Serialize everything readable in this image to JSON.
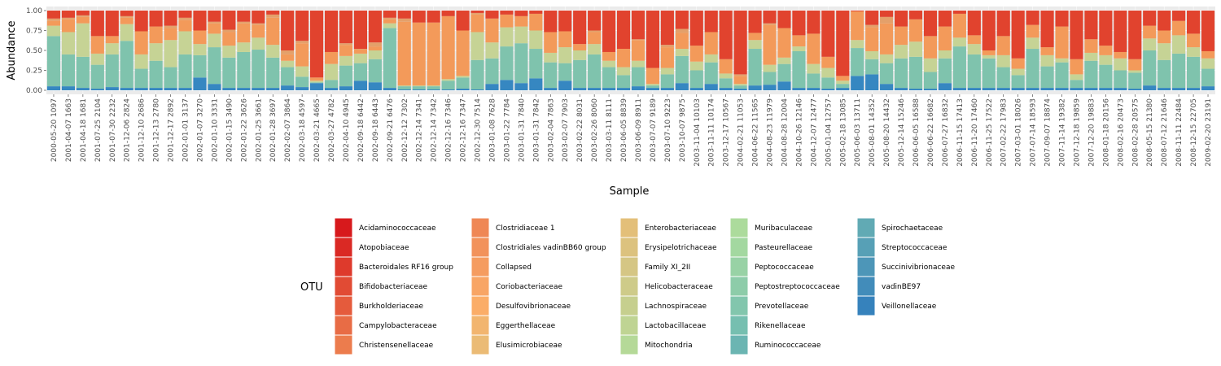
{
  "chart_data": {
    "type": "bar",
    "stacked": true,
    "xlabel": "Sample",
    "ylabel": "Abundance",
    "ylim": [
      0,
      1
    ],
    "yticks": [
      "0.00",
      "0.25",
      "0.50",
      "0.75",
      "1.00"
    ],
    "legend_title": "OTU",
    "legend_position": "bottom",
    "grid": true,
    "categories": [
      "2000-05-20 1097",
      "2001-04-07 1663",
      "2001-04-18 1681",
      "2001-07-25 2104",
      "2001-07-30 2232",
      "2001-12-06 2824",
      "2001-12-10 2686",
      "2001-12-13 2780",
      "2001-12-17 2892",
      "2002-01-01 3137",
      "2002-01-07 3270",
      "2002-01-10 3331",
      "2002-01-15 3490",
      "2002-01-22 3626",
      "2002-01-25 3661",
      "2002-01-28 3697",
      "2002-02-07 3864",
      "2002-03-18 4597",
      "2002-03-21 4665",
      "2002-03-27 4782",
      "2002-04-10 4945",
      "2002-09-18 6442",
      "2002-09-18 6443",
      "2002-09-21 6476",
      "2002-12-12 7302",
      "2002-12-14 7341",
      "2002-12-14 7342",
      "2002-12-16 7346",
      "2002-12-16 7347",
      "2002-12-30 7514",
      "2003-01-08 7628",
      "2003-01-22 7784",
      "2003-01-31 7840",
      "2003-01-31 7842",
      "2003-02-04 7863",
      "2003-02-07 7903",
      "2003-02-22 8031",
      "2003-02-26 8060",
      "2003-03-11 8111",
      "2003-06-05 8839",
      "2003-06-09 8911",
      "2003-07-07 9189",
      "2003-07-10 9223",
      "2003-10-07 9875",
      "2003-11-04 10103",
      "2003-11-11 10174",
      "2003-12-17 10567",
      "2004-02-21 11053",
      "2004-06-22 11565",
      "2004-08-23 11979",
      "2004-08-28 12004",
      "2004-10-26 12146",
      "2004-12-07 12477",
      "2005-01-04 12757",
      "2005-02-18 13085",
      "2005-06-03 13711",
      "2005-08-01 14352",
      "2005-08-20 14432",
      "2005-12-14 15246",
      "2006-06-05 16588",
      "2006-06-22 16682",
      "2006-07-27 16832",
      "2006-11-15 17413",
      "2006-11-20 17460",
      "2006-11-25 17522",
      "2007-02-22 17983",
      "2007-03-01 18026",
      "2007-07-14 18593",
      "2007-09-07 18874",
      "2007-11-14 19382",
      "2007-12-18 19859",
      "2007-12-20 19883",
      "2008-01-18 20156",
      "2008-02-16 20473",
      "2008-02-28 20575",
      "2008-05-15 21380",
      "2008-07-12 21646",
      "2008-11-11 22484",
      "2008-12-15 22705",
      "2009-02-20 23191"
    ],
    "group_order": [
      "Veillonellaceae",
      "Prevotellaceae",
      "Lachnospiraceae",
      "Collapsed",
      "Ruminococcaceae",
      "Bacteroidales RF16 group"
    ],
    "group_colors": {
      "Veillonellaceae": "#3687c1",
      "Prevotellaceae": "#7fc3ad",
      "Lachnospiraceae": "#c6d395",
      "Collapsed": "#f39a5a",
      "Ruminococcaceae": "#e4a06a",
      "Bacteroidales RF16 group": "#e1432e"
    },
    "series": [
      {
        "name": "Veillonellaceae",
        "values": [
          0.05,
          0.05,
          0.03,
          0.02,
          0.04,
          0.03,
          0.03,
          0.03,
          0.03,
          0.03,
          0.16,
          0.08,
          0.03,
          0.03,
          0.03,
          0.03,
          0.06,
          0.04,
          0.09,
          0.03,
          0.05,
          0.12,
          0.1,
          0.03,
          0.01,
          0.01,
          0.01,
          0.01,
          0.02,
          0.01,
          0.08,
          0.13,
          0.09,
          0.15,
          0.03,
          0.12,
          0.03,
          0.03,
          0.03,
          0.03,
          0.05,
          0.03,
          0.03,
          0.09,
          0.03,
          0.08,
          0.03,
          0.02,
          0.06,
          0.07,
          0.11,
          0.03,
          0.03,
          0.02,
          0.03,
          0.18,
          0.2,
          0.08,
          0.03,
          0.02,
          0.02,
          0.09,
          0.03,
          0.03,
          0.03,
          0.03,
          0.03,
          0.03,
          0.03,
          0.03,
          0.03,
          0.03,
          0.03,
          0.03,
          0.02,
          0.06,
          0.03,
          0.03,
          0.03,
          0.05
        ]
      },
      {
        "name": "Prevotellaceae",
        "values": [
          0.63,
          0.4,
          0.39,
          0.3,
          0.41,
          0.59,
          0.24,
          0.34,
          0.26,
          0.42,
          0.28,
          0.46,
          0.38,
          0.45,
          0.48,
          0.38,
          0.23,
          0.13,
          0.01,
          0.1,
          0.26,
          0.22,
          0.29,
          0.75,
          0.04,
          0.04,
          0.04,
          0.11,
          0.14,
          0.37,
          0.32,
          0.42,
          0.5,
          0.37,
          0.32,
          0.22,
          0.35,
          0.42,
          0.26,
          0.16,
          0.24,
          0.03,
          0.17,
          0.34,
          0.22,
          0.27,
          0.12,
          0.04,
          0.46,
          0.16,
          0.22,
          0.46,
          0.18,
          0.14,
          0.05,
          0.35,
          0.19,
          0.26,
          0.37,
          0.4,
          0.21,
          0.31,
          0.52,
          0.42,
          0.37,
          0.26,
          0.16,
          0.49,
          0.27,
          0.32,
          0.1,
          0.34,
          0.29,
          0.22,
          0.2,
          0.44,
          0.35,
          0.43,
          0.39,
          0.22
        ]
      },
      {
        "name": "Lachnospiraceae",
        "values": [
          0.13,
          0.28,
          0.42,
          0.14,
          0.14,
          0.21,
          0.18,
          0.22,
          0.34,
          0.29,
          0.14,
          0.17,
          0.15,
          0.12,
          0.15,
          0.16,
          0.08,
          0.13,
          0.02,
          0.2,
          0.12,
          0.12,
          0.11,
          0.06,
          0.01,
          0.01,
          0.01,
          0.02,
          0.02,
          0.35,
          0.2,
          0.24,
          0.21,
          0.23,
          0.12,
          0.2,
          0.12,
          0.13,
          0.08,
          0.1,
          0.08,
          0.02,
          0.08,
          0.09,
          0.11,
          0.1,
          0.06,
          0.02,
          0.11,
          0.09,
          0.08,
          0.06,
          0.12,
          0.12,
          0.04,
          0.1,
          0.1,
          0.11,
          0.17,
          0.19,
          0.17,
          0.1,
          0.11,
          0.13,
          0.04,
          0.15,
          0.08,
          0.14,
          0.14,
          0.05,
          0.07,
          0.1,
          0.12,
          0.15,
          0.03,
          0.15,
          0.21,
          0.23,
          0.12,
          0.13
        ]
      },
      {
        "name": "Collapsed",
        "values": [
          0.06,
          0.16,
          0.08,
          0.22,
          0.09,
          0.08,
          0.29,
          0.21,
          0.15,
          0.14,
          0.17,
          0.13,
          0.17,
          0.24,
          0.16,
          0.34,
          0.08,
          0.29,
          0.04,
          0.15,
          0.14,
          0.05,
          0.05,
          0.05,
          0.8,
          0.79,
          0.79,
          0.79,
          0.57,
          0.22,
          0.3,
          0.16,
          0.13,
          0.21,
          0.26,
          0.2,
          0.08,
          0.15,
          0.11,
          0.23,
          0.26,
          0.2,
          0.26,
          0.2,
          0.2,
          0.28,
          0.18,
          0.1,
          0.09,
          0.5,
          0.37,
          0.14,
          0.38,
          0.14,
          0.06,
          0.36,
          0.3,
          0.39,
          0.23,
          0.28,
          0.28,
          0.3,
          0.3,
          0.11,
          0.06,
          0.24,
          0.13,
          0.16,
          0.1,
          0.4,
          0.19,
          0.17,
          0.12,
          0.08,
          0.14,
          0.16,
          0.16,
          0.18,
          0.17,
          0.09
        ]
      },
      {
        "name": "Ruminococcaceae",
        "values": [
          0.03,
          0.02,
          0.02,
          0.0,
          0.0,
          0.02,
          0.0,
          0.0,
          0.03,
          0.03,
          0.0,
          0.02,
          0.03,
          0.02,
          0.02,
          0.04,
          0.05,
          0.03,
          0.0,
          0.0,
          0.02,
          0.01,
          0.05,
          0.02,
          0.04,
          0.0,
          0.0,
          0.0,
          0.0,
          0.02,
          0.0,
          0.0,
          0.0,
          0.0,
          0.0,
          0.0,
          0.0,
          0.02,
          0.0,
          0.0,
          0.01,
          0.0,
          0.03,
          0.05,
          0.0,
          0.0,
          0.0,
          0.02,
          0.0,
          0.02,
          0.0,
          0.0,
          0.0,
          0.0,
          0.0,
          0.0,
          0.03,
          0.08,
          0.0,
          0.0,
          0.0,
          0.0,
          0.0,
          0.0,
          0.0,
          0.0,
          0.0,
          0.0,
          0.0,
          0.0,
          0.0,
          0.0,
          0.0,
          0.0,
          0.0,
          0.0,
          0.0,
          0.0,
          0.0,
          0.0
        ]
      },
      {
        "name": "Bacteroidales RF16 group",
        "values": [
          0.1,
          0.09,
          0.06,
          0.32,
          0.32,
          0.07,
          0.26,
          0.2,
          0.19,
          0.09,
          0.25,
          0.14,
          0.24,
          0.14,
          0.16,
          0.05,
          0.5,
          0.38,
          0.84,
          0.52,
          0.41,
          0.48,
          0.4,
          0.09,
          0.1,
          0.15,
          0.15,
          0.07,
          0.25,
          0.03,
          0.1,
          0.05,
          0.07,
          0.04,
          0.27,
          0.26,
          0.42,
          0.25,
          0.52,
          0.48,
          0.36,
          0.72,
          0.43,
          0.23,
          0.44,
          0.27,
          0.61,
          0.8,
          0.28,
          0.16,
          0.22,
          0.31,
          0.29,
          0.58,
          0.82,
          0.01,
          0.18,
          0.08,
          0.2,
          0.11,
          0.32,
          0.2,
          0.04,
          0.31,
          0.5,
          0.32,
          0.6,
          0.18,
          0.46,
          0.2,
          0.61,
          0.36,
          0.44,
          0.52,
          0.61,
          0.19,
          0.25,
          0.13,
          0.29,
          0.51
        ]
      }
    ],
    "legend": [
      {
        "label": "Acidaminococcaceae",
        "color": "#d7191c"
      },
      {
        "label": "Atopobiaceae",
        "color": "#da2924"
      },
      {
        "label": "Bacteroidales RF16 group",
        "color": "#de3a2c"
      },
      {
        "label": "Bifidobacteriaceae",
        "color": "#e14b34"
      },
      {
        "label": "Burkholderiaceae",
        "color": "#e55b3c"
      },
      {
        "label": "Campylobacteraceae",
        "color": "#e86c45"
      },
      {
        "label": "Christensenellaceae",
        "color": "#ec7c4d"
      },
      {
        "label": "Clostridiaceae 1",
        "color": "#ef8755"
      },
      {
        "label": "Clostridiales vadinBB60 group",
        "color": "#f2925b"
      },
      {
        "label": "Collapsed",
        "color": "#f59c60"
      },
      {
        "label": "Coriobacteriaceae",
        "color": "#f8a565"
      },
      {
        "label": "Desulfovibrionaceae",
        "color": "#fbad68"
      },
      {
        "label": "Eggerthellaceae",
        "color": "#f2b56f"
      },
      {
        "label": "Elusimicrobiaceae",
        "color": "#ebbb75"
      },
      {
        "label": "Enterobacteriaceae",
        "color": "#e3bf79"
      },
      {
        "label": "Erysipelotrichaceae",
        "color": "#dcc27e"
      },
      {
        "label": "Family XI_2II",
        "color": "#d5c684"
      },
      {
        "label": "Helicobacteraceae",
        "color": "#cecb89"
      },
      {
        "label": "Lachnospiraceae",
        "color": "#c6cf8e"
      },
      {
        "label": "Lactobacillaceae",
        "color": "#bfd493"
      },
      {
        "label": "Mitochondria",
        "color": "#b5d998"
      },
      {
        "label": "Muribaculaceae",
        "color": "#acdb9c"
      },
      {
        "label": "Pasteurellaceae",
        "color": "#a3d8a0"
      },
      {
        "label": "Peptococcaceae",
        "color": "#98d2a5"
      },
      {
        "label": "Peptostreptococcaceae",
        "color": "#8dcca9"
      },
      {
        "label": "Prevotellaceae",
        "color": "#82c6ad"
      },
      {
        "label": "Rikenellaceae",
        "color": "#76bfb0"
      },
      {
        "label": "Ruminococcaceae",
        "color": "#6bb5b2"
      },
      {
        "label": "Spirochaetaceae",
        "color": "#61aab4"
      },
      {
        "label": "Streptococcaceae",
        "color": "#57a0b6"
      },
      {
        "label": "Succinivibrionaceae",
        "color": "#4d96b8"
      },
      {
        "label": "vadinBE97",
        "color": "#428cba"
      },
      {
        "label": "Veillonellaceae",
        "color": "#3682bc"
      }
    ]
  }
}
